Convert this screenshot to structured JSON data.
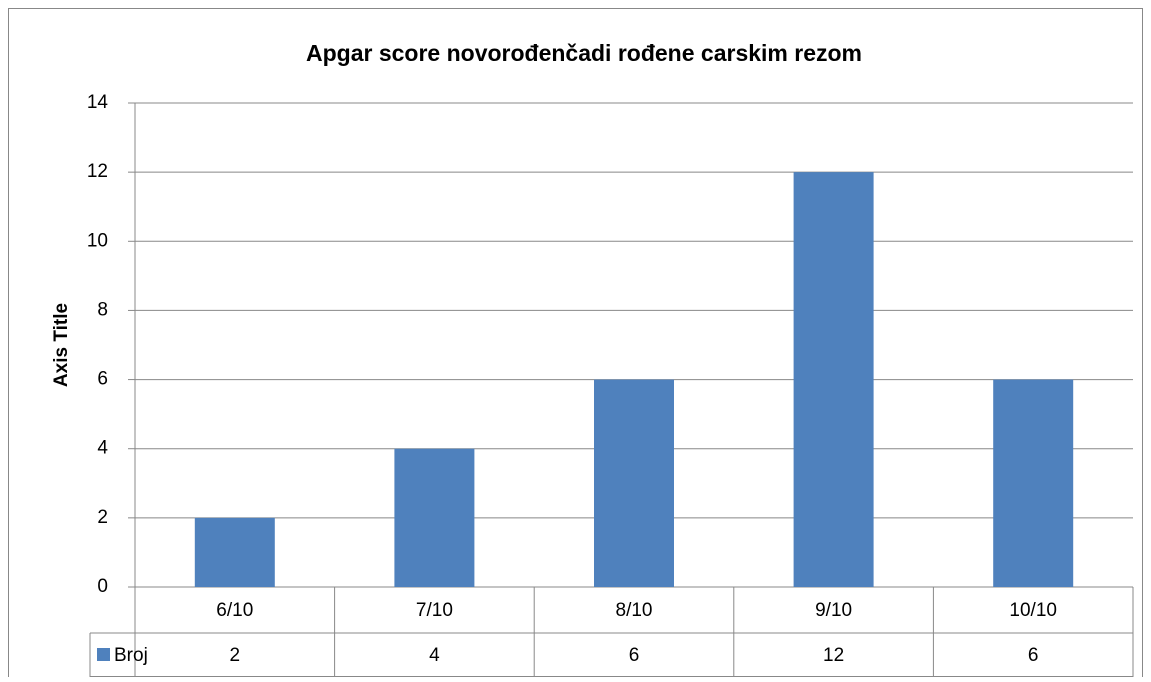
{
  "chart_data": {
    "type": "bar",
    "title": "Apgar score novorođenčadi rođene carskim rezom",
    "y_axis_title": "Axis Title",
    "categories": [
      "6/10",
      "7/10",
      "8/10",
      "9/10",
      "10/10"
    ],
    "series": [
      {
        "name": "Broj",
        "color": "#4f81bd",
        "values": [
          2,
          4,
          6,
          12,
          6
        ]
      }
    ],
    "ylim": [
      0,
      14
    ],
    "yticks": [
      0,
      2,
      4,
      6,
      8,
      10,
      12,
      14
    ],
    "grid": true
  }
}
